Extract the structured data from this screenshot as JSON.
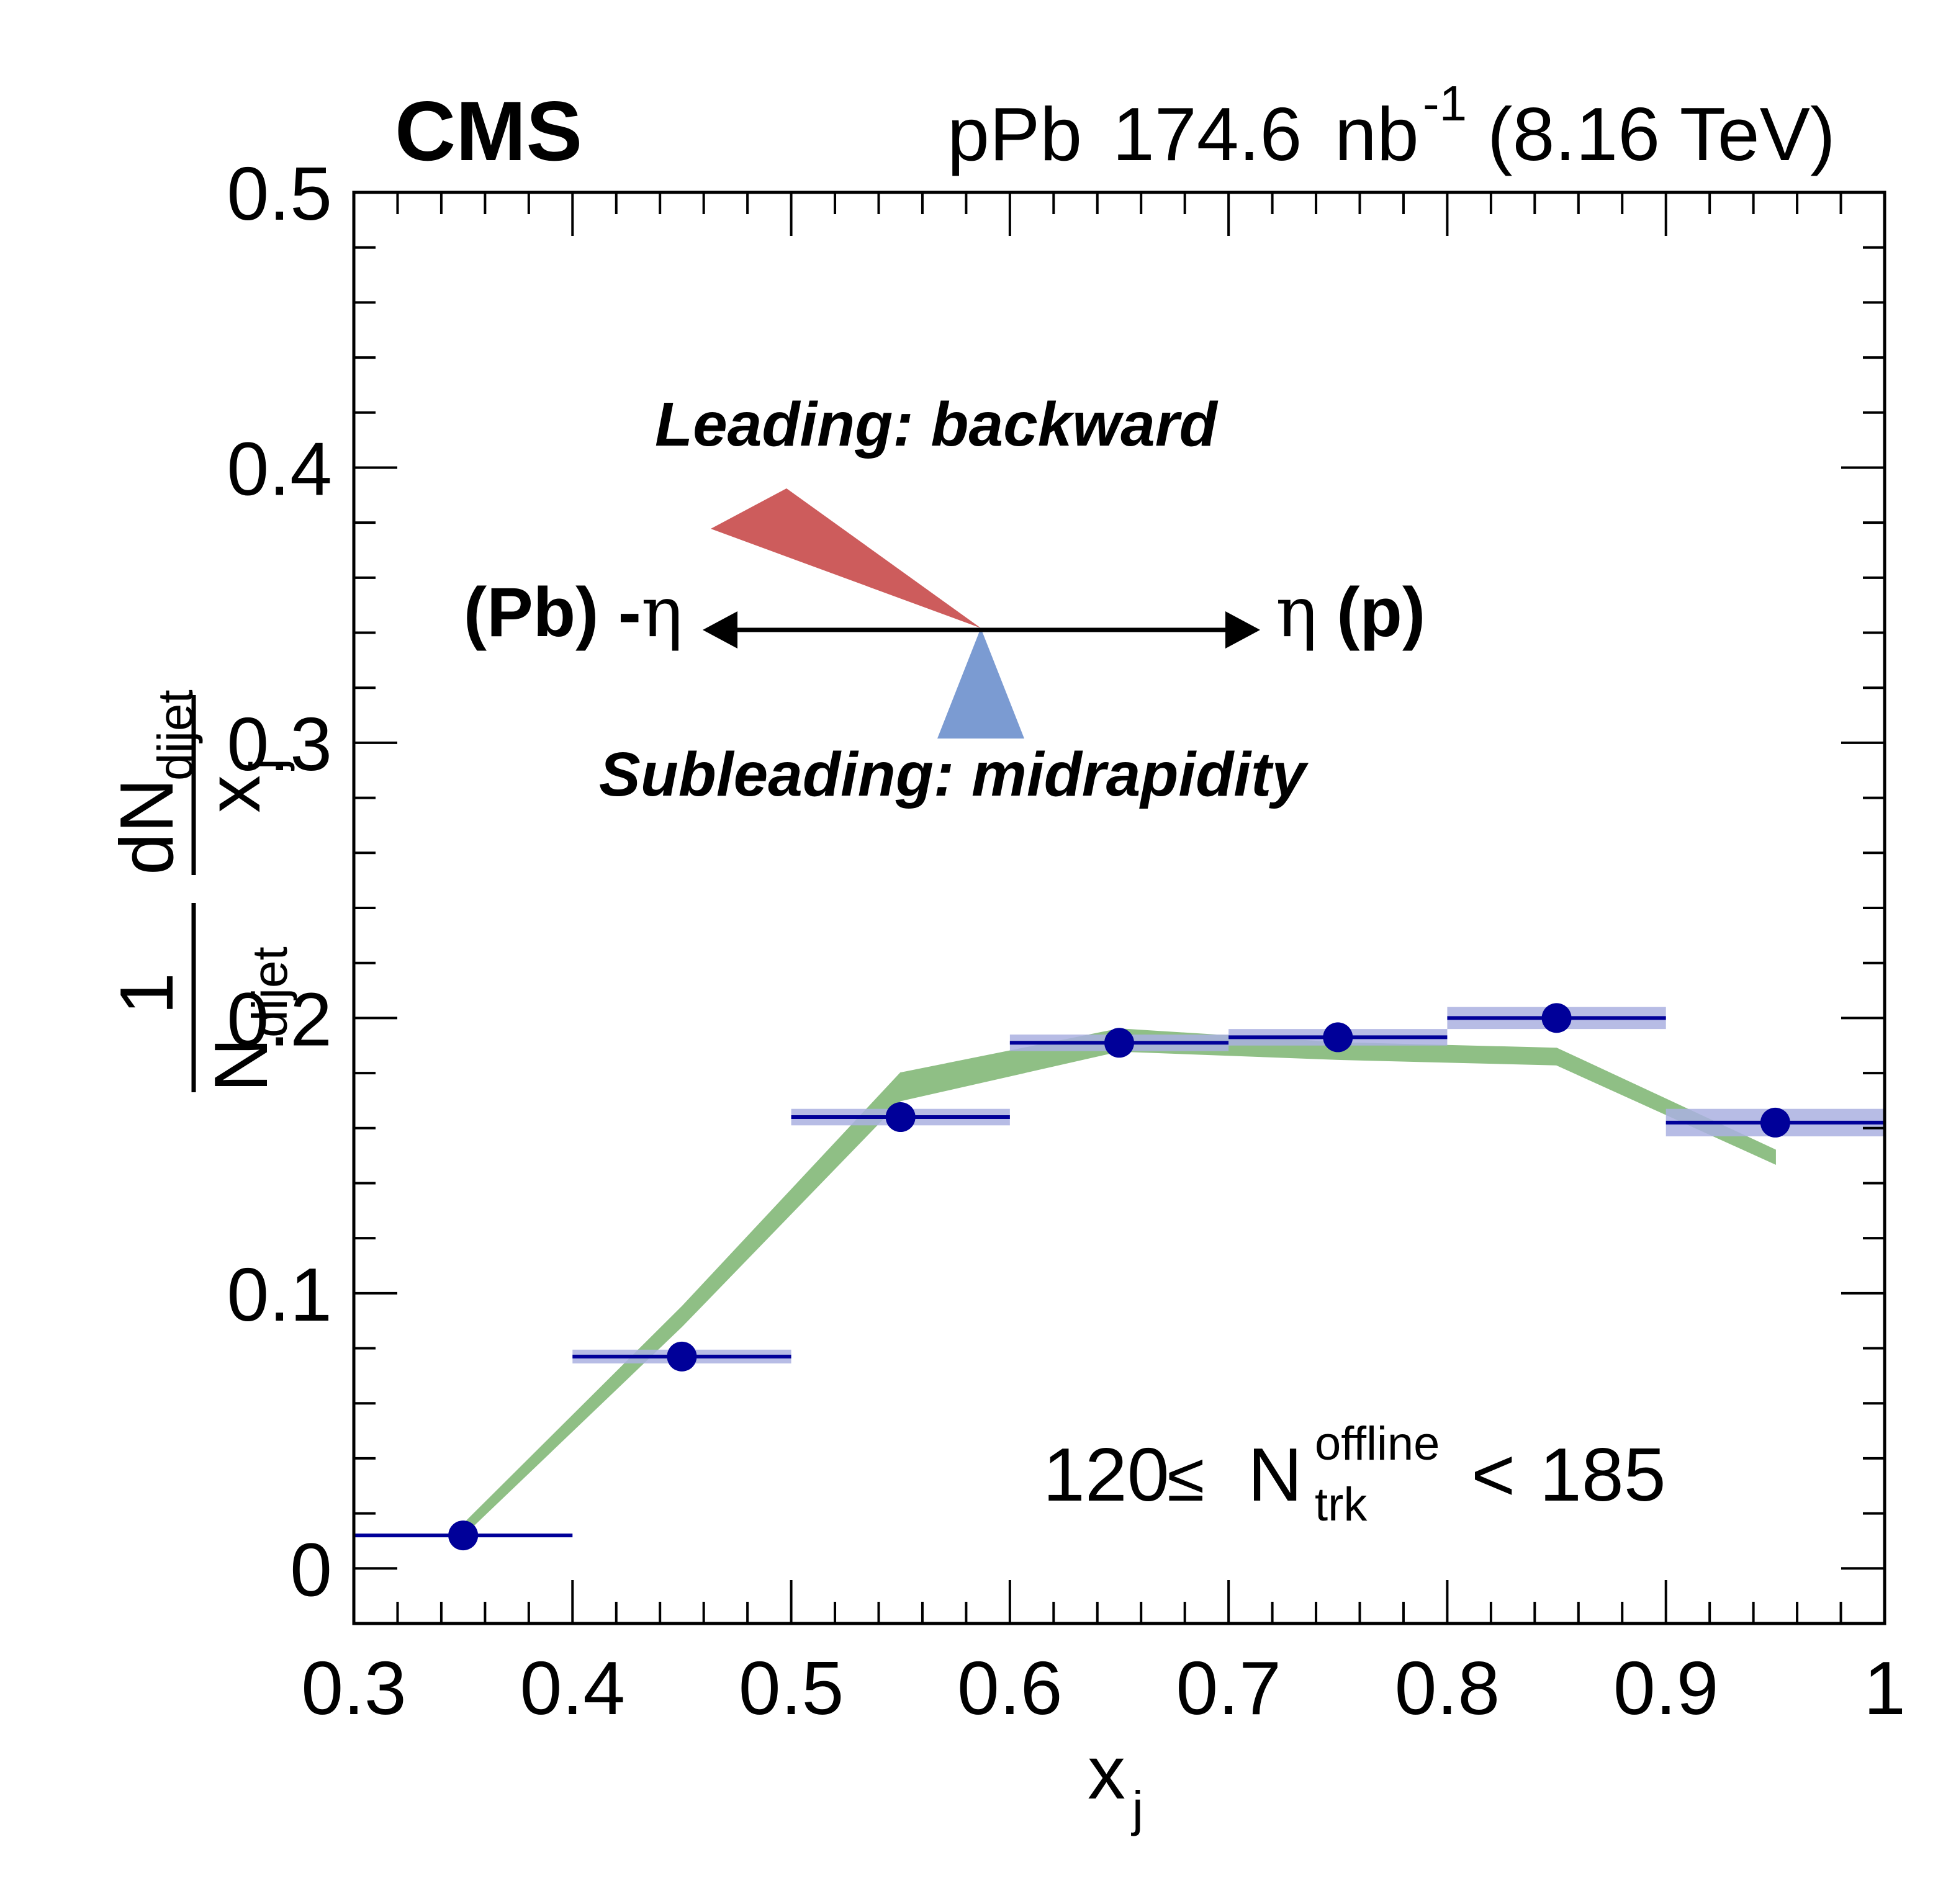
{
  "chart_data": {
    "type": "scatter",
    "experiment_label": "CMS",
    "luminosity": {
      "system": "pPb",
      "value": "174.6",
      "unit_base": "nb",
      "unit_exponent": "-1",
      "energy": "(8.16 TeV)"
    },
    "xlabel": {
      "base": "x",
      "sub": "j"
    },
    "ylabel": {
      "numerator": "1",
      "denominator_base": "N",
      "denominator_sub": "dijet",
      "frac_num_base": "dN",
      "frac_num_sub": "dijet",
      "frac_den_base": "x",
      "frac_den_sub": "j"
    },
    "xlim": [
      0.3,
      1.0
    ],
    "ylim": [
      -0.02,
      0.5
    ],
    "x_ticks": [
      {
        "value": 0.3,
        "label": "0.3"
      },
      {
        "value": 0.4,
        "label": "0.4"
      },
      {
        "value": 0.5,
        "label": "0.5"
      },
      {
        "value": 0.6,
        "label": "0.6"
      },
      {
        "value": 0.7,
        "label": "0.7"
      },
      {
        "value": 0.8,
        "label": "0.8"
      },
      {
        "value": 0.9,
        "label": "0.9"
      },
      {
        "value": 1.0,
        "label": "1"
      }
    ],
    "y_ticks": [
      {
        "value": 0.0,
        "label": "0"
      },
      {
        "value": 0.1,
        "label": "0.1"
      },
      {
        "value": 0.2,
        "label": "0.2"
      },
      {
        "value": 0.3,
        "label": "0.3"
      },
      {
        "value": 0.4,
        "label": "0.4"
      },
      {
        "value": 0.5,
        "label": "0.5"
      }
    ],
    "data_points": {
      "color": "#000099",
      "syst_color": "#aab0e0",
      "points": [
        {
          "x": 0.35,
          "xlow": 0.3,
          "xhigh": 0.4,
          "y": 0.012,
          "syst": 0.0
        },
        {
          "x": 0.45,
          "xlow": 0.4,
          "xhigh": 0.5,
          "y": 0.077,
          "syst": 0.0025
        },
        {
          "x": 0.55,
          "xlow": 0.5,
          "xhigh": 0.6,
          "y": 0.164,
          "syst": 0.003
        },
        {
          "x": 0.65,
          "xlow": 0.6,
          "xhigh": 0.7,
          "y": 0.191,
          "syst": 0.003
        },
        {
          "x": 0.75,
          "xlow": 0.7,
          "xhigh": 0.8,
          "y": 0.193,
          "syst": 0.003
        },
        {
          "x": 0.85,
          "xlow": 0.8,
          "xhigh": 0.9,
          "y": 0.2,
          "syst": 0.004
        },
        {
          "x": 0.95,
          "xlow": 0.9,
          "xhigh": 1.0,
          "y": 0.162,
          "syst": 0.005
        }
      ]
    },
    "reference_band": {
      "color": "#8fbf85",
      "points": [
        {
          "x": 0.35,
          "low": 0.012,
          "high": 0.016
        },
        {
          "x": 0.45,
          "low": 0.088,
          "high": 0.095
        },
        {
          "x": 0.55,
          "low": 0.17,
          "high": 0.18
        },
        {
          "x": 0.65,
          "low": 0.188,
          "high": 0.196
        },
        {
          "x": 0.75,
          "low": 0.185,
          "high": 0.191
        },
        {
          "x": 0.85,
          "low": 0.183,
          "high": 0.189
        },
        {
          "x": 0.95,
          "low": 0.147,
          "high": 0.152
        }
      ]
    },
    "annotations": {
      "leading": {
        "text": "Leading: backward",
        "color": "#cd5c5c"
      },
      "subleading": {
        "text": "Subleading: midrapidity",
        "color": "#7b9bd2"
      },
      "eta_left_label": "(Pb) -",
      "eta_left_greek": "η",
      "eta_right_greek": "η",
      "eta_right_label": " (p)"
    },
    "multiplicity_selection": {
      "low": "120",
      "leq": "≤",
      "base": "N",
      "sup": "offline",
      "sub": "trk",
      "lt": "<",
      "high": "185"
    },
    "grid": false,
    "legend": "none"
  }
}
